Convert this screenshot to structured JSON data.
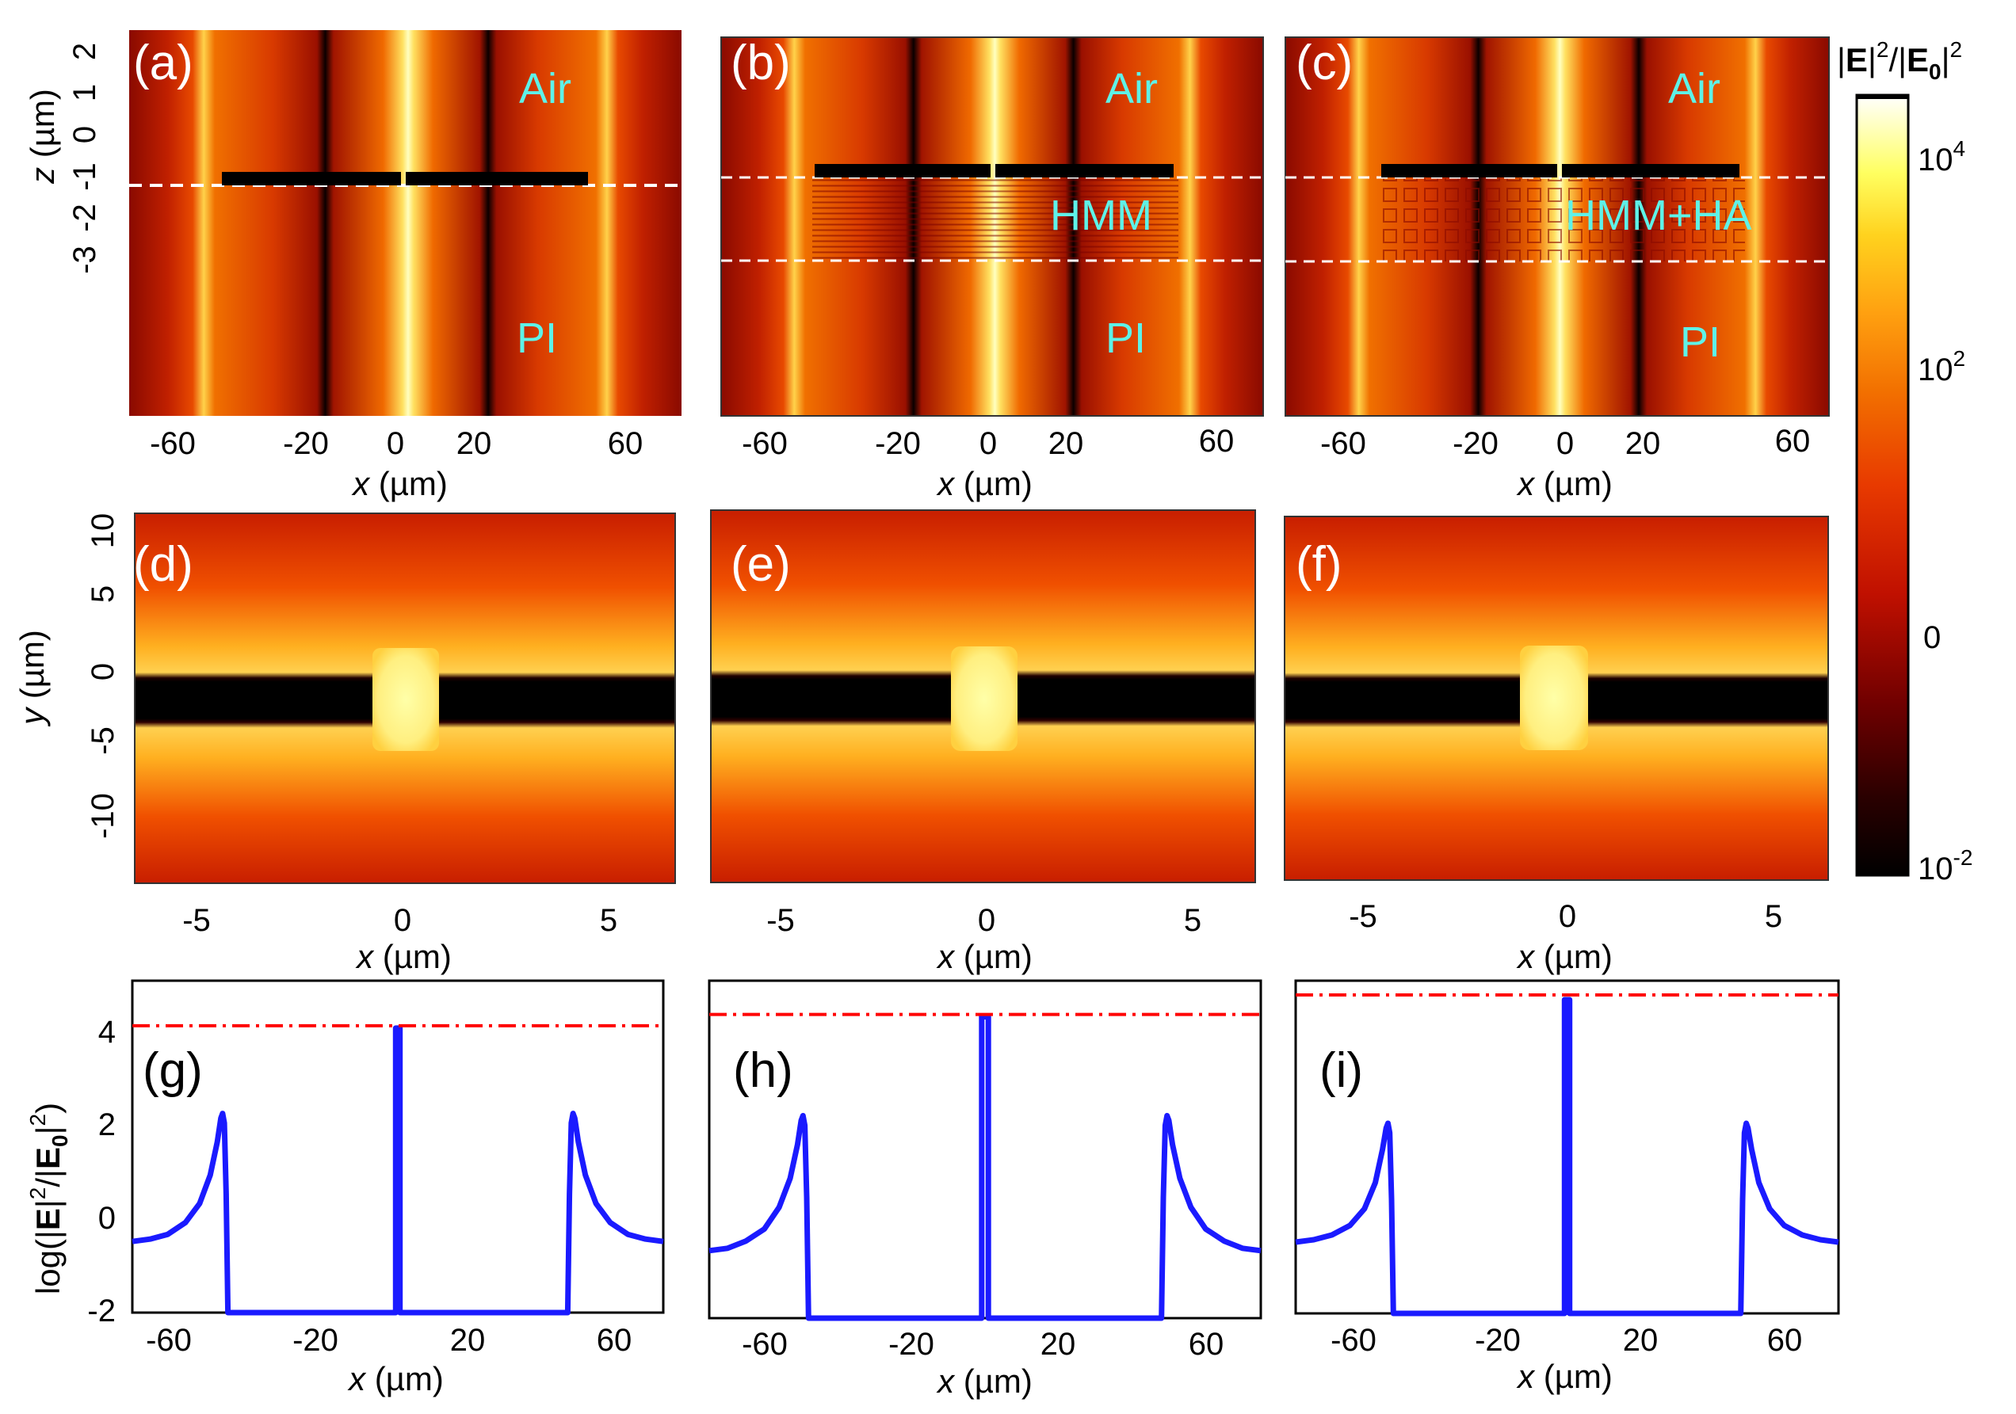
{
  "figure": {
    "colorbar": {
      "title_parts": [
        "|",
        "E",
        "|",
        "2",
        "/|",
        "E",
        "0",
        "|",
        "2"
      ],
      "ticks": [
        {
          "base": "10",
          "exp": "4"
        },
        {
          "base": "10",
          "exp": "2"
        },
        {
          "base": "0",
          "exp": ""
        },
        {
          "base": "10",
          "exp": "-2"
        }
      ],
      "colors": [
        "#000000",
        "#3a0000",
        "#8b0000",
        "#d81e00",
        "#f05a00",
        "#ff9a0a",
        "#ffd21e",
        "#ffff60",
        "#ffffff"
      ]
    },
    "row1": {
      "xlabel": "(µm)",
      "xlabel_var": "x",
      "ylabel": "(µm)",
      "ylabel_var": "z",
      "xticks": [
        "-60",
        "-20",
        "0",
        "20",
        "60"
      ],
      "yticks": [
        "2",
        "1",
        "0",
        "-1",
        "-2",
        "-3"
      ],
      "panels": [
        {
          "label": "(a)",
          "regions": [
            "Air",
            "PI"
          ]
        },
        {
          "label": "(b)",
          "regions": [
            "Air",
            "HMM",
            "PI"
          ]
        },
        {
          "label": "(c)",
          "regions": [
            "Air",
            "HMM+HA",
            "PI"
          ]
        }
      ]
    },
    "row2": {
      "xlabel": "(µm)",
      "xlabel_var": "x",
      "ylabel": "(µm)",
      "ylabel_var": "y",
      "xticks": [
        "-5",
        "0",
        "5"
      ],
      "yticks": [
        "10",
        "5",
        "0",
        "-5",
        "-10"
      ],
      "panels": [
        {
          "label": "(d)"
        },
        {
          "label": "(e)"
        },
        {
          "label": "(f)"
        }
      ]
    },
    "row3": {
      "xlabel": "(µm)",
      "xlabel_var": "x",
      "ylabel_parts": [
        "log(|",
        "E",
        "|",
        "2",
        "/|",
        "E",
        "0",
        "|",
        "2",
        ")"
      ],
      "xticks": [
        "-60",
        "-20",
        "20",
        "60"
      ],
      "yticks": [
        "4",
        "2",
        "0",
        "-2"
      ],
      "panels": [
        {
          "label": "(g)"
        },
        {
          "label": "(h)"
        },
        {
          "label": "(i)"
        }
      ]
    }
  },
  "chart_data": [
    {
      "type": "line",
      "panel": "(g)",
      "xlabel": "x (µm)",
      "ylabel": "log(|E|^2/|E0|^2)",
      "xlim": [
        -75,
        75
      ],
      "ylim": [
        -2,
        5
      ],
      "series": [
        {
          "name": "field",
          "color": "#1a1aff",
          "x": [
            -75,
            -70,
            -65,
            -60,
            -56,
            -53,
            -51,
            -50,
            -49.5,
            -49,
            -48.5,
            -48,
            -1,
            -0.6,
            -0.6,
            0.6,
            0.6,
            1,
            48,
            48.5,
            49,
            49.5,
            50,
            51,
            53,
            56,
            60,
            65,
            70,
            75
          ],
          "y": [
            -0.5,
            -0.45,
            -0.35,
            -0.1,
            0.3,
            0.9,
            1.6,
            2.1,
            2.2,
            2.0,
            0.5,
            -2,
            -2,
            -2,
            4.0,
            4.0,
            -2,
            -2,
            -2,
            0.5,
            2.0,
            2.2,
            2.1,
            1.6,
            0.9,
            0.3,
            -0.1,
            -0.35,
            -0.45,
            -0.5
          ]
        },
        {
          "name": "peak level",
          "color": "#ff0000",
          "style": "dash-dot",
          "x": [
            -75,
            75
          ],
          "y": [
            4.05,
            4.05
          ]
        }
      ]
    },
    {
      "type": "line",
      "panel": "(h)",
      "xlabel": "x (µm)",
      "ylabel": "log(|E|^2/|E0|^2)",
      "xlim": [
        -75,
        75
      ],
      "ylim": [
        -2,
        5
      ],
      "series": [
        {
          "name": "field",
          "color": "#1a1aff",
          "x": [
            -75,
            -70,
            -65,
            -60,
            -56,
            -53,
            -51,
            -50,
            -49.5,
            -49,
            -48.5,
            -48,
            -1,
            -0.9,
            -0.9,
            0.9,
            0.9,
            1,
            48,
            48.5,
            49,
            49.5,
            50,
            51,
            53,
            56,
            60,
            65,
            70,
            75
          ],
          "y": [
            -0.6,
            -0.55,
            -0.4,
            -0.15,
            0.3,
            0.9,
            1.6,
            2.1,
            2.2,
            2.0,
            0.5,
            -2,
            -2,
            -2,
            4.25,
            4.25,
            -2,
            -2,
            -2,
            0.5,
            2.0,
            2.2,
            2.1,
            1.6,
            0.9,
            0.3,
            -0.15,
            -0.4,
            -0.55,
            -0.6
          ]
        },
        {
          "name": "peak level",
          "color": "#ff0000",
          "style": "dash-dot",
          "x": [
            -75,
            75
          ],
          "y": [
            4.3,
            4.3
          ]
        }
      ]
    },
    {
      "type": "line",
      "panel": "(i)",
      "xlabel": "x (µm)",
      "ylabel": "log(|E|^2/|E0|^2)",
      "xlim": [
        -75,
        75
      ],
      "ylim": [
        -2,
        5
      ],
      "series": [
        {
          "name": "field",
          "color": "#1a1aff",
          "x": [
            -75,
            -70,
            -65,
            -60,
            -56,
            -53,
            -51,
            -50,
            -49.5,
            -49,
            -48.5,
            -48,
            -1,
            -0.7,
            -0.7,
            0.7,
            0.7,
            1,
            48,
            48.5,
            49,
            49.5,
            50,
            51,
            53,
            56,
            60,
            65,
            70,
            75
          ],
          "y": [
            -0.5,
            -0.45,
            -0.35,
            -0.15,
            0.2,
            0.75,
            1.45,
            1.9,
            2.0,
            1.8,
            0.4,
            -2,
            -2,
            -2,
            4.6,
            4.6,
            -2,
            -2,
            -2,
            0.4,
            1.8,
            2.0,
            1.9,
            1.45,
            0.75,
            0.2,
            -0.15,
            -0.35,
            -0.45,
            -0.5
          ]
        },
        {
          "name": "peak level",
          "color": "#ff0000",
          "style": "dash-dot",
          "x": [
            -75,
            75
          ],
          "y": [
            4.7,
            4.7
          ]
        }
      ]
    }
  ]
}
